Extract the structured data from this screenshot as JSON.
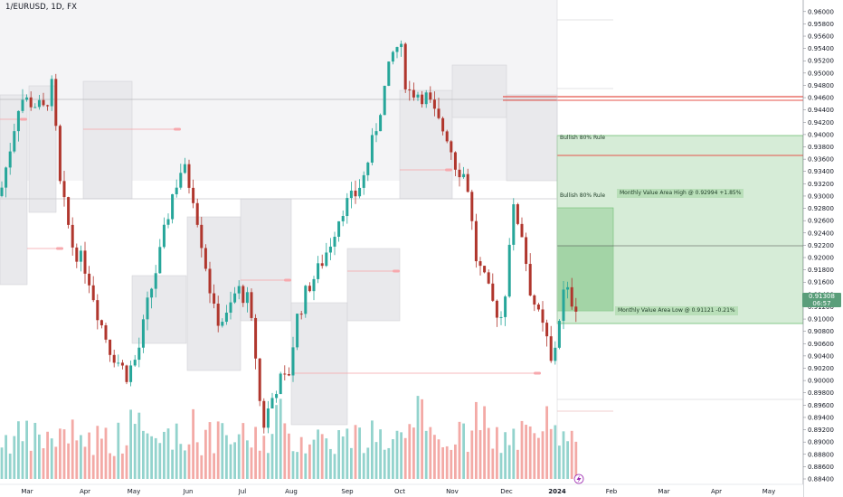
{
  "symbol": {
    "title": "1/EURUSD, 1D, FX"
  },
  "y_axis": {
    "min": 0.884,
    "max": 0.961,
    "ticks": [
      "0.96000",
      "0.95800",
      "0.95600",
      "0.95400",
      "0.95200",
      "0.95000",
      "0.94800",
      "0.94600",
      "0.94400",
      "0.94200",
      "0.94000",
      "0.93800",
      "0.93600",
      "0.93400",
      "0.93200",
      "0.93000",
      "0.92800",
      "0.92600",
      "0.92400",
      "0.92200",
      "0.92000",
      "0.91800",
      "0.91600",
      "0.91400",
      "0.91200",
      "0.91000",
      "0.90800",
      "0.90600",
      "0.90400",
      "0.90200",
      "0.90000",
      "0.89800",
      "0.89600",
      "0.89400",
      "0.89200",
      "0.89000",
      "0.88800",
      "0.88600",
      "0.88400"
    ]
  },
  "x_axis": {
    "labels": [
      "Mar",
      "Apr",
      "May",
      "Jun",
      "Jul",
      "Aug",
      "Sep",
      "Oct",
      "Nov",
      "Dec",
      "2024",
      "Feb",
      "Mar",
      "Apr",
      "May"
    ]
  },
  "current_price": {
    "value": "0.91308",
    "countdown": "06:57"
  },
  "annotations": {
    "bullish_rule_1": "Bullish 80% Rule",
    "bullish_rule_2": "Bullish 80% Rule",
    "value_area_high": "Monthly Value Area High @ 0.92994  +1.85%",
    "value_area_low": "Monthly Value Area Low @ 0.91121  -0.21%"
  },
  "colors": {
    "up": "#26a69a",
    "down": "#b0362d",
    "value_area_box": "#e9e9ec",
    "projection_green": "#c8e6c9",
    "red_line": "#e5534b",
    "grid": "#f0f3fa",
    "axis_text": "#131722"
  },
  "icons": {
    "lightning": "lightning-icon"
  }
}
